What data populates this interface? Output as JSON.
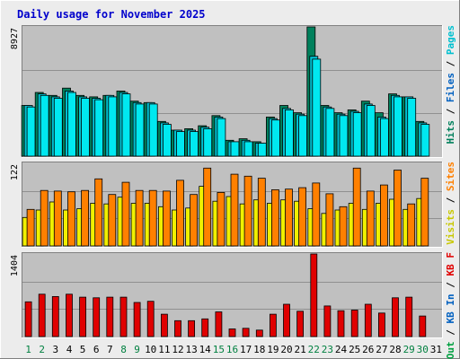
{
  "title": "Daily usage for November 2025",
  "colors": {
    "background": "#ececec",
    "panel": "#c0c0c0",
    "title": "#0000cc",
    "gridline": "#909090",
    "hits": "#00805c",
    "files": "#00c0d0",
    "pages": "#00e8f0",
    "visits": "#f0f000",
    "sites": "#ff8000",
    "kbytes": "#e00000",
    "day_weekday": "#000000",
    "day_weekend": "#008040"
  },
  "legend_right": {
    "top": [
      {
        "text": "Hits",
        "color": "#00805c"
      },
      {
        "text": " / ",
        "color": "#000000"
      },
      {
        "text": "Files",
        "color": "#0060c0"
      },
      {
        "text": " / ",
        "color": "#000000"
      },
      {
        "text": "Pages",
        "color": "#00c0d0"
      }
    ],
    "middle": [
      {
        "text": "Visits",
        "color": "#c8c800"
      },
      {
        "text": " / ",
        "color": "#000000"
      },
      {
        "text": "Sites",
        "color": "#ff8000"
      }
    ],
    "bottom": [
      {
        "text": "KB Out",
        "color": "#00a040"
      },
      {
        "text": " / ",
        "color": "#000000"
      },
      {
        "text": "KB In",
        "color": "#0060c0"
      },
      {
        "text": " / ",
        "color": "#000000"
      },
      {
        "text": "KB F",
        "color": "#e00000"
      }
    ]
  },
  "chart_data": [
    {
      "type": "bar",
      "panel": "hits",
      "y_max_label": "8927",
      "ylim": [
        0,
        8927
      ],
      "categories": [
        "1",
        "2",
        "3",
        "4",
        "5",
        "6",
        "7",
        "8",
        "9",
        "10",
        "11",
        "12",
        "13",
        "14",
        "15",
        "16",
        "17",
        "18",
        "19",
        "20",
        "21",
        "22",
        "23",
        "24",
        "25",
        "26",
        "27",
        "28",
        "29",
        "30",
        "31"
      ],
      "series": [
        {
          "name": "Hits",
          "values": [
            3500,
            4400,
            4200,
            4700,
            4200,
            4100,
            4200,
            4500,
            3800,
            3700,
            2400,
            1800,
            1900,
            2100,
            2800,
            1100,
            1200,
            1000,
            2700,
            3500,
            3000,
            8927,
            3500,
            3000,
            3200,
            3800,
            3000,
            4300,
            4100,
            2400,
            0
          ]
        },
        {
          "name": "Files",
          "values": [
            3500,
            4300,
            4100,
            4500,
            4100,
            4000,
            4200,
            4400,
            3700,
            3700,
            2300,
            1800,
            1800,
            2000,
            2700,
            1000,
            1100,
            900,
            2600,
            3300,
            2900,
            6900,
            3400,
            2900,
            3100,
            3600,
            2700,
            4200,
            4100,
            2300,
            0
          ]
        },
        {
          "name": "Pages",
          "values": [
            3400,
            4200,
            4000,
            4400,
            4000,
            3900,
            4100,
            4300,
            3600,
            3600,
            2200,
            1700,
            1700,
            1900,
            2600,
            1000,
            1000,
            900,
            2500,
            3200,
            2800,
            6700,
            3300,
            2800,
            3000,
            3500,
            2600,
            4100,
            4000,
            2200,
            0
          ]
        }
      ]
    },
    {
      "type": "bar",
      "panel": "visits",
      "y_max_label": "122",
      "ylim": [
        0,
        122
      ],
      "categories": [
        "1",
        "2",
        "3",
        "4",
        "5",
        "6",
        "7",
        "8",
        "9",
        "10",
        "11",
        "12",
        "13",
        "14",
        "15",
        "16",
        "17",
        "18",
        "19",
        "20",
        "21",
        "22",
        "23",
        "24",
        "25",
        "26",
        "27",
        "28",
        "29",
        "30",
        "31"
      ],
      "series": [
        {
          "name": "Visits",
          "values": [
            42,
            53,
            65,
            53,
            55,
            63,
            62,
            72,
            63,
            63,
            58,
            53,
            56,
            88,
            66,
            73,
            62,
            68,
            63,
            68,
            66,
            55,
            48,
            53,
            63,
            54,
            63,
            69,
            54,
            70,
            0
          ]
        },
        {
          "name": "Sites",
          "values": [
            54,
            82,
            81,
            80,
            82,
            99,
            76,
            94,
            82,
            82,
            81,
            97,
            76,
            115,
            79,
            106,
            103,
            100,
            83,
            84,
            86,
            93,
            77,
            58,
            115,
            81,
            90,
            112,
            62,
            100,
            0
          ]
        }
      ]
    },
    {
      "type": "bar",
      "panel": "kbytes",
      "y_max_label": "1404",
      "ylim": [
        0,
        1404
      ],
      "categories": [
        "1",
        "2",
        "3",
        "4",
        "5",
        "6",
        "7",
        "8",
        "9",
        "10",
        "11",
        "12",
        "13",
        "14",
        "15",
        "16",
        "17",
        "18",
        "19",
        "20",
        "21",
        "22",
        "23",
        "24",
        "25",
        "26",
        "27",
        "28",
        "29",
        "30",
        "31"
      ],
      "series": [
        {
          "name": "KB F",
          "values": [
            590,
            720,
            680,
            720,
            670,
            660,
            670,
            670,
            580,
            600,
            380,
            270,
            270,
            300,
            420,
            130,
            140,
            110,
            380,
            550,
            430,
            1404,
            520,
            440,
            450,
            550,
            400,
            660,
            670,
            350,
            0
          ]
        }
      ]
    }
  ],
  "days": [
    {
      "label": "1",
      "weekend": true
    },
    {
      "label": "2",
      "weekend": true
    },
    {
      "label": "3",
      "weekend": false
    },
    {
      "label": "4",
      "weekend": false
    },
    {
      "label": "5",
      "weekend": false
    },
    {
      "label": "6",
      "weekend": false
    },
    {
      "label": "7",
      "weekend": false
    },
    {
      "label": "8",
      "weekend": true
    },
    {
      "label": "9",
      "weekend": true
    },
    {
      "label": "10",
      "weekend": false
    },
    {
      "label": "11",
      "weekend": false
    },
    {
      "label": "12",
      "weekend": false
    },
    {
      "label": "13",
      "weekend": false
    },
    {
      "label": "14",
      "weekend": false
    },
    {
      "label": "15",
      "weekend": true
    },
    {
      "label": "16",
      "weekend": true
    },
    {
      "label": "17",
      "weekend": false
    },
    {
      "label": "18",
      "weekend": false
    },
    {
      "label": "19",
      "weekend": false
    },
    {
      "label": "20",
      "weekend": false
    },
    {
      "label": "21",
      "weekend": false
    },
    {
      "label": "22",
      "weekend": true
    },
    {
      "label": "23",
      "weekend": true
    },
    {
      "label": "24",
      "weekend": false
    },
    {
      "label": "25",
      "weekend": false
    },
    {
      "label": "26",
      "weekend": false
    },
    {
      "label": "27",
      "weekend": false
    },
    {
      "label": "28",
      "weekend": false
    },
    {
      "label": "29",
      "weekend": true
    },
    {
      "label": "30",
      "weekend": true
    },
    {
      "label": "31",
      "weekend": false
    }
  ]
}
